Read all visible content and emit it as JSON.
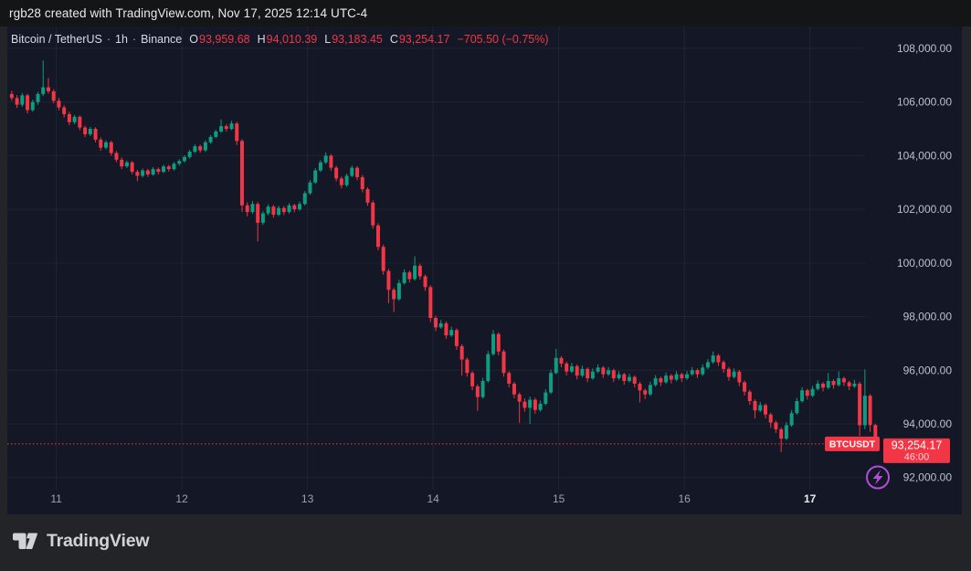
{
  "attribution": {
    "text": "rgb28 created with TradingView.com, Nov 17, 2025 12:14 UTC-4"
  },
  "legend": {
    "symbol": "Bitcoin / TetherUS",
    "separator": "·",
    "interval": "1h",
    "exchange": "Binance",
    "o_label": "O",
    "o_value": "93,959.68",
    "h_label": "H",
    "h_value": "94,010.39",
    "l_label": "L",
    "l_value": "93,183.45",
    "c_label": "C",
    "c_value": "93,254.17",
    "change": "−705.50 (−0.75%)"
  },
  "price_axis": {
    "labels": [
      "108,000.00",
      "106,000.00",
      "104,000.00",
      "102,000.00",
      "100,000.00",
      "98,000.00",
      "96,000.00",
      "94,000.00",
      "92,000.00"
    ],
    "values": [
      108000,
      106000,
      104000,
      102000,
      100000,
      98000,
      96000,
      94000,
      92000
    ]
  },
  "time_axis": {
    "labels": [
      {
        "text": "11",
        "bar_index": 9,
        "current": false
      },
      {
        "text": "12",
        "bar_index": 33,
        "current": false
      },
      {
        "text": "13",
        "bar_index": 57,
        "current": false
      },
      {
        "text": "14",
        "bar_index": 81,
        "current": false
      },
      {
        "text": "15",
        "bar_index": 105,
        "current": false
      },
      {
        "text": "16",
        "bar_index": 129,
        "current": false
      },
      {
        "text": "17",
        "bar_index": 153,
        "current": true
      }
    ]
  },
  "price_line": {
    "tag": "BTCUSDT",
    "price_label": "93,254.17",
    "countdown": "46:00",
    "value": 93254.17
  },
  "footer": {
    "brand": "TradingView",
    "logo_icon": "tradingview-17-mark"
  },
  "colors": {
    "up": "#0f9d82",
    "down": "#f23645",
    "chart_bg": "#141826",
    "outer_bg": "#232427",
    "topbar_bg": "#141517",
    "grid": "rgba(250,250,252,0.055)",
    "price_line": "#f23645",
    "accent_purple": "#b04fd8"
  },
  "chart_data": {
    "type": "candlestick",
    "symbol": "BTCUSDT",
    "title": "Bitcoin / TetherUS · 1h · Binance",
    "interval": "1h",
    "exchange": "Binance",
    "time_range": "Nov 10 15:00 – Nov 17 12:00 (UTC-4), hourly bars",
    "grid": true,
    "legend_position": "top-left",
    "y_axis": {
      "top_tick_value": 108000,
      "tick_step": 2000,
      "min_tick": 92000,
      "max_tick": 108000
    },
    "day_start_indices": [
      9,
      33,
      57,
      81,
      105,
      129,
      153
    ],
    "day_labels": [
      "11",
      "12",
      "13",
      "14",
      "15",
      "16",
      "17"
    ],
    "last_bar": {
      "open": 93959.68,
      "high": 94010.39,
      "low": 93183.45,
      "close": 93254.17,
      "change": -705.5,
      "change_pct": -0.75
    },
    "candles_format": [
      "open",
      "high",
      "low",
      "close"
    ],
    "candles": [
      [
        106300,
        106420,
        106050,
        106150
      ],
      [
        106150,
        106260,
        105780,
        105900
      ],
      [
        105900,
        106340,
        105820,
        106250
      ],
      [
        106250,
        106310,
        105580,
        105700
      ],
      [
        105700,
        106090,
        105640,
        106000
      ],
      [
        106000,
        106380,
        105900,
        106300
      ],
      [
        106300,
        107550,
        106220,
        106550
      ],
      [
        106550,
        106900,
        106310,
        106400
      ],
      [
        106400,
        106480,
        105960,
        106050
      ],
      [
        106050,
        106160,
        105690,
        105800
      ],
      [
        105800,
        105880,
        105430,
        105550
      ],
      [
        105550,
        105640,
        105140,
        105250
      ],
      [
        105250,
        105520,
        105170,
        105450
      ],
      [
        105450,
        105500,
        104950,
        105050
      ],
      [
        105050,
        105120,
        104690,
        104800
      ],
      [
        104800,
        105070,
        104730,
        105000
      ],
      [
        105000,
        105060,
        104500,
        104600
      ],
      [
        104600,
        104680,
        104190,
        104300
      ],
      [
        104300,
        104570,
        104230,
        104500
      ],
      [
        104500,
        104560,
        104000,
        104100
      ],
      [
        104100,
        104170,
        103760,
        103850
      ],
      [
        103850,
        103930,
        103500,
        103600
      ],
      [
        103600,
        103820,
        103540,
        103750
      ],
      [
        103750,
        103800,
        103310,
        103400
      ],
      [
        103400,
        103470,
        103050,
        103250
      ],
      [
        103250,
        103520,
        103190,
        103450
      ],
      [
        103450,
        103510,
        103210,
        103300
      ],
      [
        103300,
        103570,
        103250,
        103500
      ],
      [
        103500,
        103560,
        103300,
        103400
      ],
      [
        103400,
        103670,
        103350,
        103600
      ],
      [
        103600,
        103660,
        103410,
        103500
      ],
      [
        103500,
        103770,
        103440,
        103700
      ],
      [
        103700,
        103870,
        103630,
        103800
      ],
      [
        103800,
        104020,
        103740,
        103950
      ],
      [
        103950,
        104220,
        103890,
        104150
      ],
      [
        104150,
        104420,
        104090,
        104350
      ],
      [
        104350,
        104410,
        104110,
        104200
      ],
      [
        104200,
        104570,
        104140,
        104500
      ],
      [
        104500,
        104770,
        104440,
        104700
      ],
      [
        104700,
        104970,
        104650,
        104900
      ],
      [
        104900,
        105350,
        104850,
        105100
      ],
      [
        105100,
        105170,
        104900,
        105000
      ],
      [
        105000,
        105300,
        104950,
        105200
      ],
      [
        105200,
        105260,
        104400,
        104550
      ],
      [
        104550,
        104620,
        101900,
        102150
      ],
      [
        102150,
        102260,
        101740,
        101900
      ],
      [
        101900,
        102310,
        101830,
        102200
      ],
      [
        102200,
        102270,
        100800,
        101500
      ],
      [
        101500,
        101930,
        101420,
        101850
      ],
      [
        101850,
        102190,
        101780,
        102100
      ],
      [
        102100,
        102170,
        101690,
        101800
      ],
      [
        101800,
        102130,
        101740,
        102050
      ],
      [
        102050,
        102120,
        101790,
        101900
      ],
      [
        101900,
        102230,
        101840,
        102150
      ],
      [
        102150,
        102210,
        101890,
        102000
      ],
      [
        102000,
        102290,
        101940,
        102200
      ],
      [
        102200,
        102680,
        102140,
        102600
      ],
      [
        102600,
        103090,
        102540,
        103000
      ],
      [
        103000,
        103530,
        102950,
        103450
      ],
      [
        103450,
        103830,
        103390,
        103750
      ],
      [
        103750,
        104120,
        103690,
        104000
      ],
      [
        104000,
        104060,
        103440,
        103550
      ],
      [
        103550,
        103620,
        103040,
        103150
      ],
      [
        103150,
        103230,
        102780,
        102900
      ],
      [
        102900,
        103330,
        102840,
        103250
      ],
      [
        103250,
        103630,
        103200,
        103550
      ],
      [
        103550,
        103610,
        103090,
        103200
      ],
      [
        103200,
        103280,
        102640,
        102750
      ],
      [
        102750,
        102820,
        102130,
        102250
      ],
      [
        102250,
        102330,
        101280,
        101400
      ],
      [
        101400,
        101480,
        100470,
        100600
      ],
      [
        100600,
        100690,
        99560,
        99700
      ],
      [
        99700,
        99780,
        98500,
        99000
      ],
      [
        99000,
        99080,
        98170,
        98650
      ],
      [
        98650,
        99370,
        98590,
        99250
      ],
      [
        99250,
        99760,
        99190,
        99650
      ],
      [
        99650,
        99720,
        99270,
        99400
      ],
      [
        99400,
        100250,
        99340,
        99900
      ],
      [
        99900,
        99970,
        99380,
        99500
      ],
      [
        99500,
        99570,
        98960,
        99100
      ],
      [
        99100,
        99170,
        97800,
        97950
      ],
      [
        97950,
        98030,
        97460,
        97600
      ],
      [
        97600,
        97870,
        97540,
        97750
      ],
      [
        97750,
        97820,
        97170,
        97300
      ],
      [
        97300,
        97620,
        97240,
        97500
      ],
      [
        97500,
        97560,
        96760,
        96900
      ],
      [
        96900,
        96970,
        95800,
        96400
      ],
      [
        96400,
        96470,
        95760,
        95900
      ],
      [
        95900,
        95970,
        95260,
        95400
      ],
      [
        95400,
        95470,
        94490,
        95000
      ],
      [
        95000,
        95720,
        94940,
        95600
      ],
      [
        95600,
        96720,
        95540,
        96600
      ],
      [
        96600,
        97500,
        96540,
        97350
      ],
      [
        97350,
        97410,
        96560,
        96700
      ],
      [
        96700,
        96770,
        95760,
        95900
      ],
      [
        95900,
        95970,
        95360,
        95500
      ],
      [
        95500,
        95570,
        94960,
        95100
      ],
      [
        95100,
        95170,
        94040,
        94830
      ],
      [
        94830,
        94950,
        94460,
        94600
      ],
      [
        94600,
        95020,
        94000,
        94900
      ],
      [
        94900,
        94970,
        94380,
        94520
      ],
      [
        94520,
        94870,
        94460,
        94750
      ],
      [
        94750,
        95290,
        94690,
        95170
      ],
      [
        95170,
        96020,
        95110,
        95900
      ],
      [
        95900,
        96800,
        95840,
        96460
      ],
      [
        96460,
        96530,
        96110,
        96250
      ],
      [
        96250,
        96320,
        95810,
        95950
      ],
      [
        95950,
        96270,
        95890,
        96150
      ],
      [
        96150,
        96210,
        95660,
        95800
      ],
      [
        95800,
        96170,
        95740,
        96050
      ],
      [
        96050,
        96110,
        95560,
        95700
      ],
      [
        95700,
        96070,
        95640,
        95950
      ],
      [
        95950,
        96220,
        95890,
        96100
      ],
      [
        96100,
        96160,
        95710,
        95850
      ],
      [
        95850,
        96120,
        95790,
        96000
      ],
      [
        96000,
        96060,
        95560,
        95700
      ],
      [
        95700,
        95970,
        95640,
        95850
      ],
      [
        95850,
        95910,
        95460,
        95600
      ],
      [
        95600,
        95870,
        95540,
        95750
      ],
      [
        95750,
        95810,
        95360,
        95500
      ],
      [
        95500,
        95570,
        94800,
        95250
      ],
      [
        95250,
        95320,
        94930,
        95100
      ],
      [
        95100,
        95570,
        95040,
        95450
      ],
      [
        95450,
        95820,
        95390,
        95700
      ],
      [
        95700,
        95760,
        95410,
        95550
      ],
      [
        95550,
        95920,
        95490,
        95800
      ],
      [
        95800,
        95860,
        95510,
        95650
      ],
      [
        95650,
        95970,
        95590,
        95850
      ],
      [
        95850,
        95910,
        95560,
        95700
      ],
      [
        95700,
        95970,
        95640,
        95850
      ],
      [
        95850,
        96120,
        95790,
        96000
      ],
      [
        96000,
        96060,
        95710,
        95850
      ],
      [
        95850,
        96220,
        95790,
        96100
      ],
      [
        96100,
        96420,
        96040,
        96300
      ],
      [
        96300,
        96700,
        96240,
        96550
      ],
      [
        96550,
        96610,
        96160,
        96300
      ],
      [
        96300,
        96370,
        95910,
        96050
      ],
      [
        96050,
        96120,
        95610,
        95750
      ],
      [
        95750,
        96070,
        95690,
        95950
      ],
      [
        95950,
        96010,
        95410,
        95550
      ],
      [
        95550,
        95620,
        95060,
        95200
      ],
      [
        95200,
        95270,
        94710,
        94850
      ],
      [
        94850,
        94920,
        94200,
        94500
      ],
      [
        94500,
        94820,
        94440,
        94700
      ],
      [
        94700,
        94760,
        94210,
        94350
      ],
      [
        94350,
        94420,
        93850,
        94050
      ],
      [
        94050,
        94120,
        93660,
        93800
      ],
      [
        93800,
        93870,
        92950,
        93450
      ],
      [
        93450,
        94070,
        93390,
        93950
      ],
      [
        93950,
        94520,
        93890,
        94400
      ],
      [
        94400,
        94970,
        94340,
        94850
      ],
      [
        94850,
        95370,
        94790,
        95250
      ],
      [
        95250,
        95310,
        94910,
        95050
      ],
      [
        95050,
        95420,
        94990,
        95300
      ],
      [
        95300,
        95620,
        95240,
        95500
      ],
      [
        95500,
        95560,
        95210,
        95350
      ],
      [
        95350,
        95900,
        95290,
        95600
      ],
      [
        95600,
        95660,
        95310,
        95450
      ],
      [
        95450,
        95950,
        95390,
        95700
      ],
      [
        95700,
        95760,
        95410,
        95550
      ],
      [
        95550,
        95610,
        95260,
        95400
      ],
      [
        95400,
        95640,
        95340,
        95500
      ],
      [
        95500,
        95570,
        93550,
        93950
      ],
      [
        93950,
        96030,
        93800,
        95050
      ],
      [
        95050,
        95110,
        93700,
        93960
      ],
      [
        93959.68,
        94010.39,
        93183.45,
        93254.17
      ]
    ]
  }
}
